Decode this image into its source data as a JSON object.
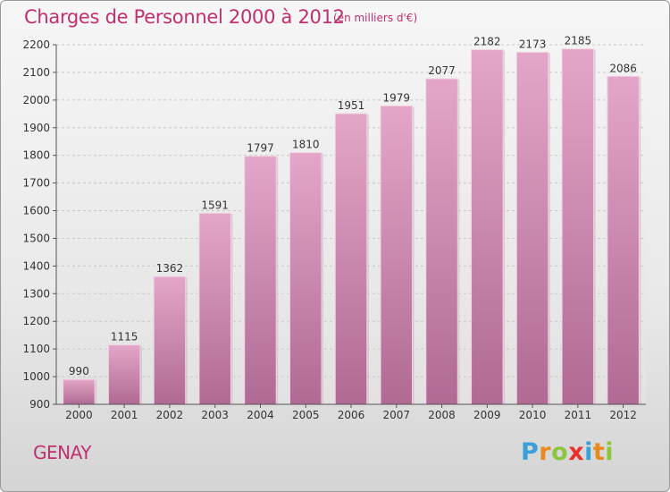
{
  "chart_data": {
    "type": "bar",
    "title": "Charges de Personnel 2000 à 2012",
    "subtitle": "(en milliers d'€)",
    "categories": [
      "2000",
      "2001",
      "2002",
      "2003",
      "2004",
      "2005",
      "2006",
      "2007",
      "2008",
      "2009",
      "2010",
      "2011",
      "2012"
    ],
    "values": [
      990,
      1115,
      1362,
      1591,
      1797,
      1810,
      1951,
      1979,
      2077,
      2182,
      2173,
      2185,
      2086
    ],
    "ylim": [
      900,
      2200
    ],
    "yticks": [
      900,
      1000,
      1100,
      1200,
      1300,
      1400,
      1500,
      1600,
      1700,
      1800,
      1900,
      2000,
      2100,
      2200
    ],
    "xlabel": "",
    "ylabel": "",
    "grid": true,
    "bar_color_top": "#e3a6c8",
    "bar_color_bottom": "#b06a93"
  },
  "footer": {
    "city": "GENAY",
    "logo_letters": [
      "P",
      "r",
      "o",
      "x",
      "i",
      "t",
      "i"
    ],
    "logo_colors": [
      "#3aa0d8",
      "#e8891d",
      "#8cc63f",
      "#e8312a",
      "#3aa0d8",
      "#e8891d",
      "#8cc63f"
    ]
  }
}
